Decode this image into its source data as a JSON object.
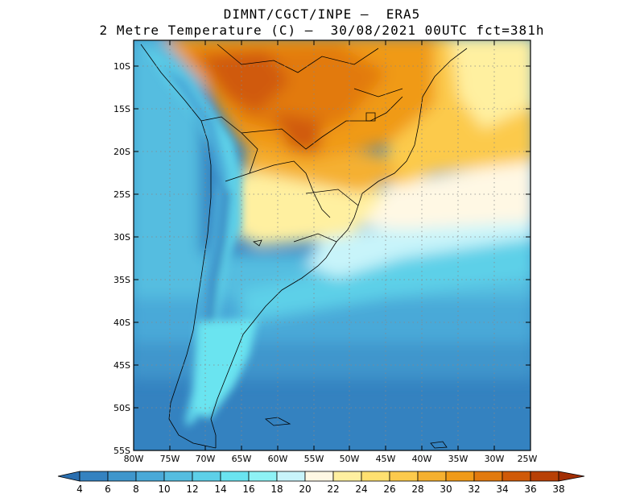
{
  "header": {
    "line1": "DIMNT/CGCT/INPE –  ERA5",
    "line2": "2 Metre Temperature (C) –  30/08/2021 00UTC fct=381h"
  },
  "map": {
    "lon_range": [
      -80,
      -25
    ],
    "lat_range": [
      -55,
      -7
    ],
    "lat_ticks": [
      "10S",
      "15S",
      "20S",
      "25S",
      "30S",
      "35S",
      "40S",
      "45S",
      "50S",
      "55S"
    ],
    "lon_ticks": [
      "80W",
      "75W",
      "70W",
      "65W",
      "60W",
      "55W",
      "50W",
      "45W",
      "40W",
      "35W",
      "30W",
      "25W"
    ],
    "gridlines": "dotted"
  },
  "colorbar": {
    "labels": [
      "4",
      "6",
      "8",
      "10",
      "12",
      "14",
      "16",
      "18",
      "20",
      "22",
      "24",
      "26",
      "28",
      "30",
      "32",
      "34",
      "36",
      "38"
    ],
    "colors": [
      "#2a6fb0",
      "#3482c0",
      "#3f96cc",
      "#4aa9d8",
      "#55bde0",
      "#5dd0e8",
      "#6ae4f0",
      "#8ef2f5",
      "#c8f4fa",
      "#fff8e4",
      "#fff0a0",
      "#ffe070",
      "#fcca4c",
      "#f5b030",
      "#f09a18",
      "#e27a0e",
      "#d05a08",
      "#b84006",
      "#a22e04"
    ]
  }
}
